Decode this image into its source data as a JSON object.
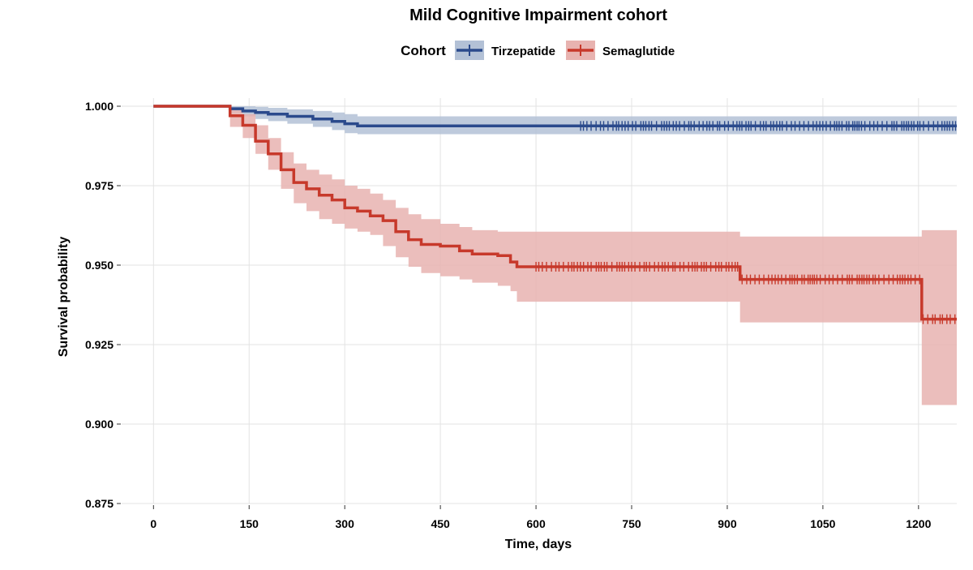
{
  "chart_data": {
    "type": "line",
    "subtype": "kaplan-meier survival curve with confidence bands and censor marks",
    "title": "Mild Cognitive Impairment cohort",
    "xlabel": "Time, days",
    "ylabel": "Survival probability",
    "xlim": [
      -50,
      1260
    ],
    "ylim": [
      0.875,
      1.0
    ],
    "xticks": [
      0,
      150,
      300,
      450,
      600,
      750,
      900,
      1050,
      1200
    ],
    "xtick_labels": [
      "0",
      "150",
      "300",
      "450",
      "600",
      "750",
      "900",
      "1050",
      "1200"
    ],
    "yticks": [
      0.875,
      0.9,
      0.925,
      0.95,
      0.975,
      1.0
    ],
    "ytick_labels": [
      "0.875",
      "0.900",
      "0.925",
      "0.950",
      "0.975",
      "1.000"
    ],
    "grid": true,
    "legend": {
      "title": "Cohort",
      "placement": "top"
    },
    "series": [
      {
        "name": "Tirzepatide",
        "color": "#2b4a8c",
        "band_color": "#b3c1d6",
        "x": [
          0,
          110,
          120,
          140,
          160,
          180,
          210,
          250,
          280,
          300,
          320,
          1260
        ],
        "y": [
          1.0,
          1.0,
          0.9992,
          0.9985,
          0.998,
          0.9975,
          0.9968,
          0.996,
          0.9952,
          0.9945,
          0.9938,
          0.9938
        ],
        "lower": [
          1.0,
          1.0,
          0.9978,
          0.9968,
          0.996,
          0.9953,
          0.9945,
          0.9935,
          0.9925,
          0.9915,
          0.9912,
          0.9912
        ],
        "upper": [
          1.0,
          1.0,
          1.0,
          1.0,
          0.9998,
          0.9995,
          0.999,
          0.9985,
          0.998,
          0.9975,
          0.9968,
          0.9968
        ],
        "censor_x_range": [
          670,
          1260
        ]
      },
      {
        "name": "Semaglutide",
        "color": "#c7392b",
        "band_color": "#e8b3b0",
        "x": [
          0,
          110,
          120,
          140,
          160,
          180,
          200,
          220,
          240,
          260,
          280,
          300,
          320,
          340,
          360,
          380,
          400,
          420,
          450,
          480,
          500,
          540,
          560,
          570,
          600,
          650,
          700,
          800,
          915,
          920,
          1000,
          1100,
          1200,
          1205,
          1260
        ],
        "y": [
          1.0,
          1.0,
          0.997,
          0.994,
          0.989,
          0.985,
          0.98,
          0.976,
          0.974,
          0.972,
          0.9705,
          0.968,
          0.967,
          0.9655,
          0.964,
          0.9605,
          0.958,
          0.9565,
          0.956,
          0.9545,
          0.9535,
          0.953,
          0.951,
          0.9495,
          0.9495,
          0.9495,
          0.9495,
          0.9495,
          0.9495,
          0.9455,
          0.9455,
          0.9455,
          0.9455,
          0.933,
          0.933
        ],
        "lower": [
          1.0,
          1.0,
          0.9935,
          0.99,
          0.985,
          0.98,
          0.974,
          0.9695,
          0.967,
          0.9645,
          0.963,
          0.9615,
          0.9605,
          0.9595,
          0.956,
          0.9525,
          0.9495,
          0.9475,
          0.9465,
          0.9455,
          0.9445,
          0.9435,
          0.9418,
          0.9385,
          0.9385,
          0.9385,
          0.9385,
          0.9385,
          0.9385,
          0.932,
          0.932,
          0.932,
          0.932,
          0.906,
          0.906
        ],
        "upper": [
          1.0,
          1.0,
          0.9995,
          0.9975,
          0.994,
          0.99,
          0.9855,
          0.982,
          0.98,
          0.9785,
          0.977,
          0.975,
          0.974,
          0.9725,
          0.9705,
          0.968,
          0.966,
          0.9645,
          0.963,
          0.962,
          0.961,
          0.9605,
          0.9605,
          0.9605,
          0.9605,
          0.9605,
          0.9605,
          0.9605,
          0.9605,
          0.959,
          0.959,
          0.959,
          0.959,
          0.961,
          0.961
        ],
        "censor_x_range": [
          600,
          1260
        ]
      }
    ]
  }
}
